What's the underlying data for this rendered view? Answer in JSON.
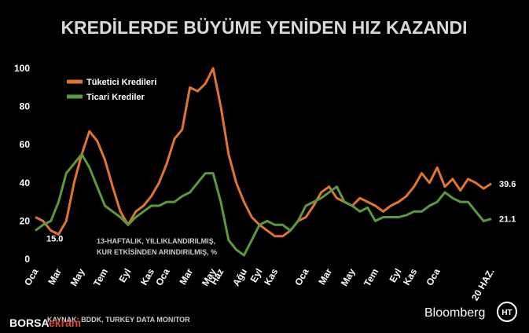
{
  "chart_data": {
    "type": "line",
    "title": "KREDİLERDE BÜYÜME YENİDEN HIZ KAZANDI",
    "note": [
      "13-HAFTALIK, YILLIKLANDIRILMIŞ,",
      "KUR ETKİSİNDEN ARINDIRILMIŞ, %"
    ],
    "source": "KAYNAK: BDDK, TURKEY DATA MONITOR",
    "brand": "Bloomberg",
    "logo": "HT",
    "watermark": [
      "BORSA",
      "ekranı"
    ],
    "categories": [
      "Oca",
      null,
      null,
      "Mar",
      null,
      null,
      "May",
      null,
      null,
      "Tem",
      null,
      null,
      "Eyl",
      null,
      null,
      "Kas",
      null,
      "Oca",
      null,
      null,
      "Mar",
      null,
      null,
      "May",
      "Haz",
      null,
      null,
      "Ağu",
      null,
      "Eyl",
      null,
      "Kas",
      null,
      null,
      null,
      "Oca",
      null,
      null,
      "Mar",
      null,
      null,
      "May",
      null,
      null,
      "Tem",
      null,
      null,
      "Eyl",
      null,
      "Kas",
      null,
      null,
      "Oca",
      null,
      null,
      null,
      null,
      null,
      null,
      "20 HAZ."
    ],
    "series": [
      {
        "name": "Tüketici Kredileri",
        "color": "#e0752d",
        "values": [
          22,
          20,
          15,
          13,
          20,
          40,
          55,
          67,
          62,
          52,
          38,
          25,
          18,
          25,
          28,
          33,
          40,
          50,
          63,
          68,
          90,
          88,
          92,
          100,
          80,
          55,
          40,
          30,
          22,
          18,
          15,
          12,
          12,
          15,
          20,
          22,
          28,
          35,
          38,
          32,
          30,
          28,
          32,
          30,
          28,
          25,
          28,
          30,
          33,
          38,
          45,
          40,
          48,
          38,
          42,
          36,
          42,
          40,
          37,
          39.6
        ],
        "value_labels": [
          null,
          null,
          null,
          null,
          null,
          null,
          null,
          null,
          null,
          null,
          null,
          null,
          null,
          null,
          null,
          null,
          null,
          null,
          null,
          null,
          null,
          null,
          null,
          null,
          null,
          null,
          null,
          null,
          null,
          null,
          null,
          null,
          null,
          null,
          null,
          null,
          null,
          null,
          null,
          null,
          null,
          null,
          null,
          null,
          null,
          null,
          null,
          null,
          null,
          null,
          null,
          null,
          null,
          null,
          null,
          null,
          null,
          null,
          null,
          "39.6"
        ]
      },
      {
        "name": "Ticari Krediler",
        "color": "#5b9a3c",
        "values": [
          15,
          18,
          20,
          30,
          45,
          50,
          55,
          48,
          38,
          28,
          25,
          22,
          18,
          22,
          25,
          28,
          28,
          30,
          30,
          33,
          35,
          40,
          45,
          45,
          30,
          10,
          5,
          2,
          10,
          18,
          20,
          18,
          18,
          15,
          20,
          28,
          30,
          32,
          35,
          38,
          30,
          28,
          25,
          27,
          20,
          22,
          22,
          22,
          23,
          25,
          25,
          28,
          30,
          35,
          32,
          30,
          30,
          25,
          20,
          21.1
        ],
        "value_labels": [
          "15.0",
          null,
          null,
          null,
          null,
          null,
          null,
          null,
          null,
          null,
          null,
          null,
          null,
          null,
          null,
          null,
          null,
          null,
          null,
          null,
          null,
          null,
          null,
          null,
          null,
          null,
          null,
          null,
          null,
          null,
          null,
          null,
          null,
          null,
          null,
          null,
          null,
          null,
          null,
          null,
          null,
          null,
          null,
          null,
          null,
          null,
          null,
          null,
          null,
          null,
          null,
          null,
          null,
          null,
          null,
          null,
          null,
          null,
          null,
          "21.1"
        ]
      }
    ],
    "ylim": [
      0,
      100
    ],
    "yticks": [
      0,
      20,
      40,
      60,
      80,
      100
    ],
    "grid": false
  }
}
